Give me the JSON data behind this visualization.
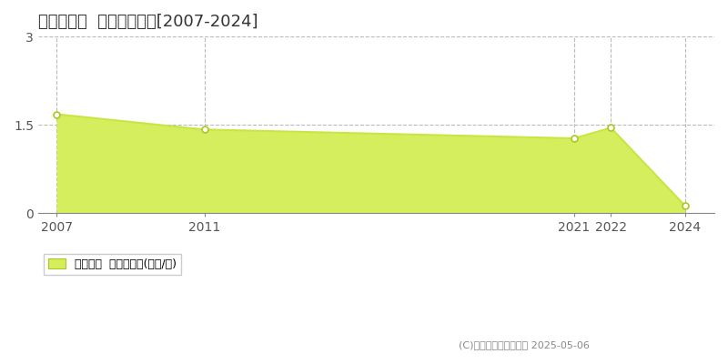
{
  "title": "関川村土沢  住宅価格推移[2007-2024]",
  "years": [
    2007,
    2011,
    2021,
    2022,
    2024
  ],
  "values": [
    1.68,
    1.42,
    1.27,
    1.45,
    0.13
  ],
  "xlim": [
    2006.5,
    2024.8
  ],
  "ylim": [
    0,
    3
  ],
  "yticks": [
    0,
    1.5,
    3
  ],
  "xticks": [
    2007,
    2011,
    2021,
    2022,
    2024
  ],
  "line_color": "#c8e642",
  "fill_color": "#d4ee5e",
  "fill_alpha": 1.0,
  "marker_color": "#ffffff",
  "marker_edge_color": "#aac820",
  "marker_size": 5,
  "grid_color": "#bbbbbb",
  "bg_color": "#ffffff",
  "legend_label": "住宅価格  平均坪単価(万円/坪)",
  "copyright_text": "(C)土地価格ドットコム 2025-05-06",
  "title_fontsize": 13,
  "axis_fontsize": 10,
  "legend_fontsize": 9
}
